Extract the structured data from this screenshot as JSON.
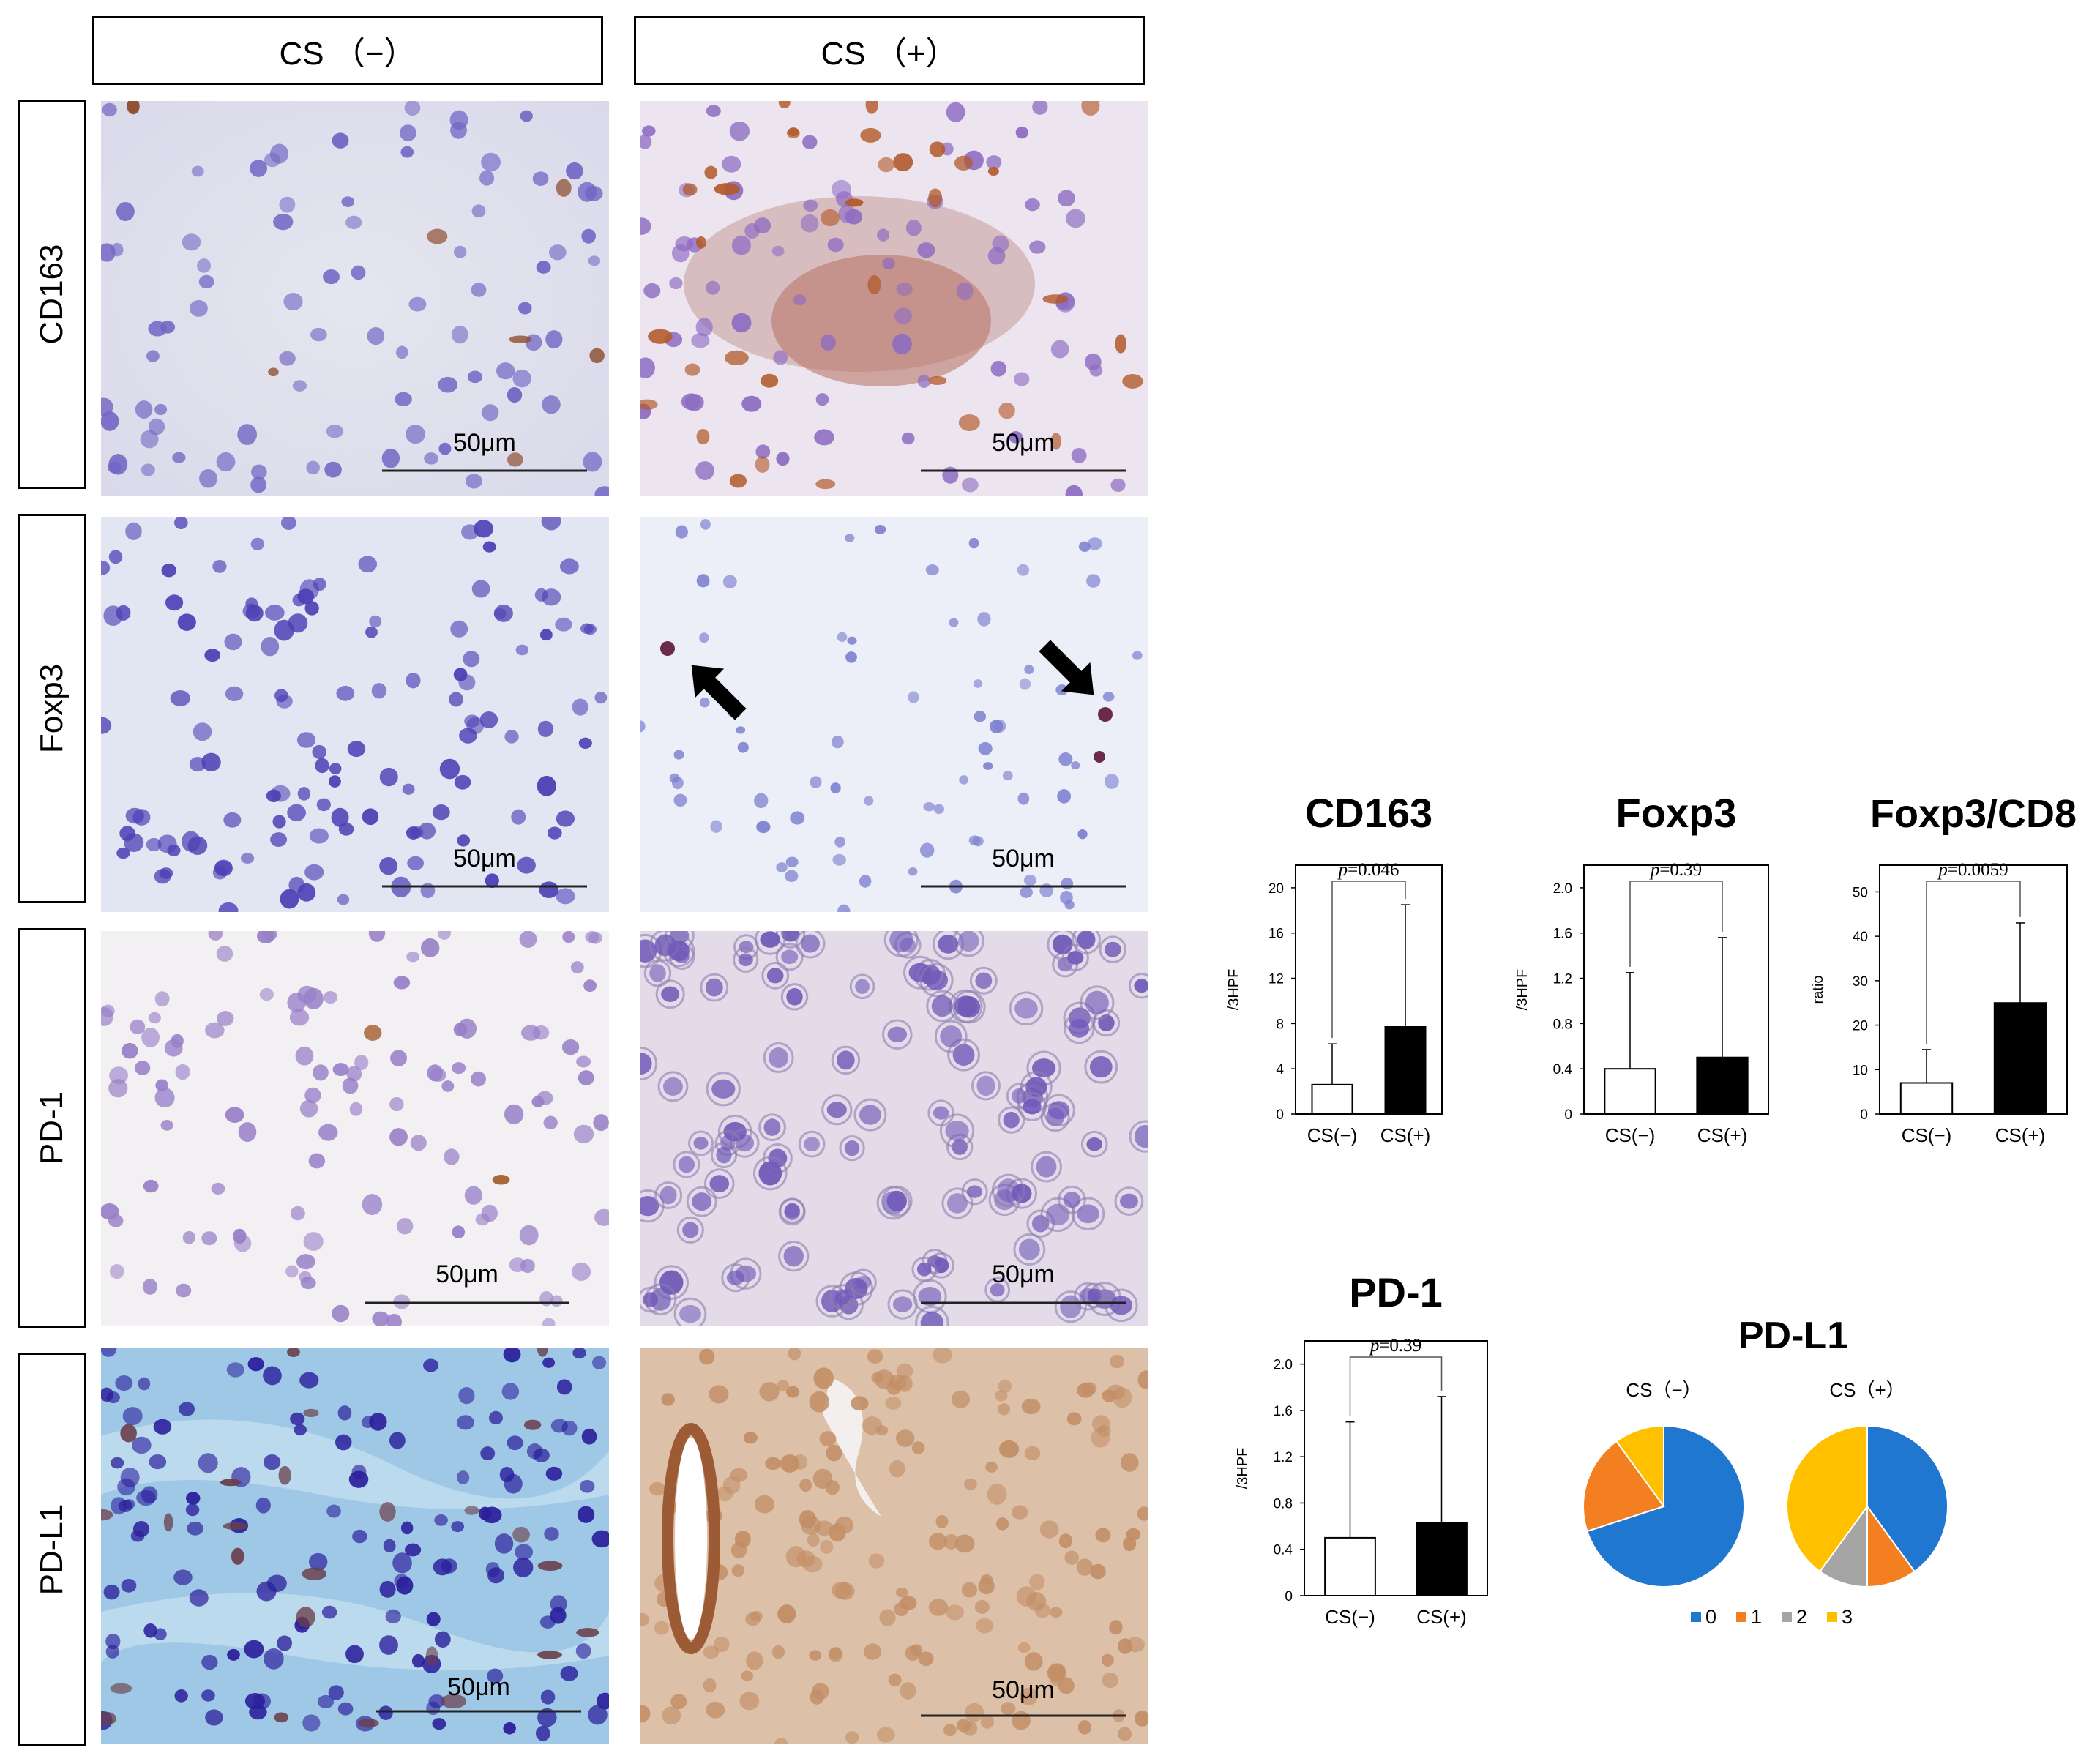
{
  "columns": [
    "CS （−）",
    "CS （+）"
  ],
  "rows": [
    "CD163",
    "Foxp3",
    "PD-1",
    "PD-L1"
  ],
  "scale_bar_label": "50μm",
  "colors": {
    "nuclei": "#6a5fbf",
    "nuclei_dark": "#3a2f9a",
    "dab_brown": "#a85a28",
    "bar_filled": "#000000",
    "pie_0": "#1f77d0",
    "pie_1": "#f47f20",
    "pie_2": "#a5a5a5",
    "pie_3": "#ffc000"
  },
  "icons": [
    "arrow-icon"
  ],
  "chart_data": [
    {
      "type": "bar",
      "title": "CD163",
      "categories": [
        "CS(−)",
        "CS(+)"
      ],
      "values": [
        2.6,
        7.7
      ],
      "error_upper": [
        6.2,
        18.5
      ],
      "ylabel": "/3HPF",
      "ylim": [
        0,
        22
      ],
      "yticks": [
        0,
        4,
        8,
        12,
        16,
        20
      ],
      "ytick_labels": [
        "0",
        "4",
        "8",
        "12",
        "16",
        "20"
      ],
      "p_label": "p=0.046"
    },
    {
      "type": "bar",
      "title": "Foxp3",
      "categories": [
        "CS(−)",
        "CS(+)"
      ],
      "values": [
        0.4,
        0.5
      ],
      "error_upper": [
        1.25,
        1.56
      ],
      "ylabel": "/3HPF",
      "ylim": [
        0,
        2.2
      ],
      "yticks": [
        0,
        0.4,
        0.8,
        1.2,
        1.6,
        2.0
      ],
      "ytick_labels": [
        "0",
        "0.4",
        "0.8",
        "1.2",
        "1.6",
        "2.0"
      ],
      "p_label": "p=0.39"
    },
    {
      "type": "bar",
      "title": "Foxp3/CD8",
      "categories": [
        "CS(−)",
        "CS(+)"
      ],
      "values": [
        7,
        25
      ],
      "error_upper": [
        14.5,
        43
      ],
      "ylabel": "ratio",
      "ylim": [
        0,
        56
      ],
      "yticks": [
        0,
        10,
        20,
        30,
        40,
        50
      ],
      "ytick_labels": [
        "0",
        "10",
        "20",
        "30",
        "40",
        "50"
      ],
      "p_label": "p=0.0059"
    },
    {
      "type": "bar",
      "title": "PD-1",
      "categories": [
        "CS(−)",
        "CS(+)"
      ],
      "values": [
        0.5,
        0.63
      ],
      "error_upper": [
        1.5,
        1.72
      ],
      "ylabel": "/3HPF",
      "ylim": [
        0,
        2.2
      ],
      "yticks": [
        0,
        0.4,
        0.8,
        1.2,
        1.6,
        2.0
      ],
      "ytick_labels": [
        "0",
        "0.4",
        "0.8",
        "1.2",
        "1.6",
        "2.0"
      ],
      "p_label": "p=0.39"
    },
    {
      "type": "pie",
      "title": "PD-L1",
      "legend": [
        "0",
        "1",
        "2",
        "3"
      ],
      "legend_placement": "bottom",
      "pies": [
        {
          "label": "CS（−）",
          "values": [
            70,
            20,
            0,
            10
          ]
        },
        {
          "label": "CS（+）",
          "values": [
            40,
            10,
            10,
            40
          ]
        }
      ]
    }
  ]
}
